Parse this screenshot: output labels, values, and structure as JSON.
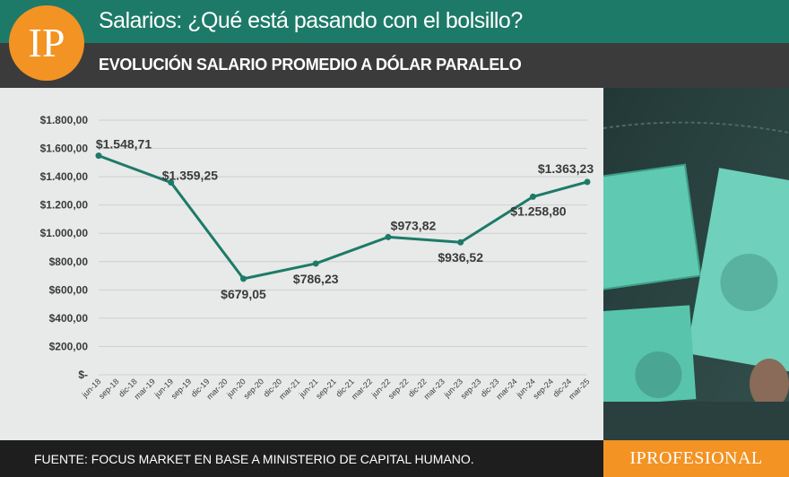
{
  "header": {
    "title": "Salarios: ¿Qué está pasando con el bolsillo?",
    "subtitle": "EVOLUCIÓN SALARIO PROMEDIO A DÓLAR PARALELO",
    "logo_text": "IP"
  },
  "footer": {
    "source": "FUENTE: FOCUS MARKET EN BASE A MINISTERIO DE CAPITAL HUMANO.",
    "brand": "IPROFESIONAL"
  },
  "colors": {
    "header_green": "#1d7a68",
    "header_dark": "#3b3b3b",
    "accent_orange": "#f39323",
    "line": "#1d7a68",
    "panel_bg": "#e8e9e9"
  },
  "chart_data": {
    "type": "line",
    "title": "EVOLUCIÓN SALARIO PROMEDIO A DÓLAR PARALELO",
    "xlabel": "",
    "ylabel": "",
    "ylim": [
      0,
      1800
    ],
    "grid": true,
    "y_ticks": [
      {
        "value": 0,
        "label": "$-"
      },
      {
        "value": 200,
        "label": "$200,00"
      },
      {
        "value": 400,
        "label": "$400,00"
      },
      {
        "value": 600,
        "label": "$600,00"
      },
      {
        "value": 800,
        "label": "$800,00"
      },
      {
        "value": 1000,
        "label": "$1.000,00"
      },
      {
        "value": 1200,
        "label": "$1.200,00"
      },
      {
        "value": 1400,
        "label": "$1.400,00"
      },
      {
        "value": 1600,
        "label": "$1.600,00"
      },
      {
        "value": 1800,
        "label": "$1.800,00"
      }
    ],
    "categories": [
      "jun-18",
      "sep-18",
      "dic-18",
      "mar-19",
      "jun-19",
      "sep-19",
      "dic-19",
      "mar-20",
      "jun-20",
      "sep-20",
      "dic-20",
      "mar-21",
      "jun-21",
      "sep-21",
      "dic-21",
      "mar-22",
      "jun-22",
      "sep-22",
      "dic-22",
      "mar-23",
      "jun-23",
      "sep-23",
      "dic-23",
      "mar-24",
      "jun-24",
      "sep-24",
      "dic-24",
      "mar-25"
    ],
    "points": [
      {
        "x": "jun-18",
        "y": 1548.71,
        "label": "$1.548,71",
        "pos": "above"
      },
      {
        "x": "jun-19",
        "y": 1359.25,
        "label": "$1.359,25",
        "pos": "right"
      },
      {
        "x": "jun-20",
        "y": 679.05,
        "label": "$679,05",
        "pos": "below"
      },
      {
        "x": "jun-21",
        "y": 786.23,
        "label": "$786,23",
        "pos": "below"
      },
      {
        "x": "jun-22",
        "y": 973.82,
        "label": "$973,82",
        "pos": "above"
      },
      {
        "x": "jun-23",
        "y": 936.52,
        "label": "$936,52",
        "pos": "below"
      },
      {
        "x": "jun-24",
        "y": 1258.8,
        "label": "$1.258,80",
        "pos": "below-right"
      },
      {
        "x": "mar-25",
        "y": 1363.23,
        "label": "$1.363,23",
        "pos": "above-left"
      }
    ]
  }
}
